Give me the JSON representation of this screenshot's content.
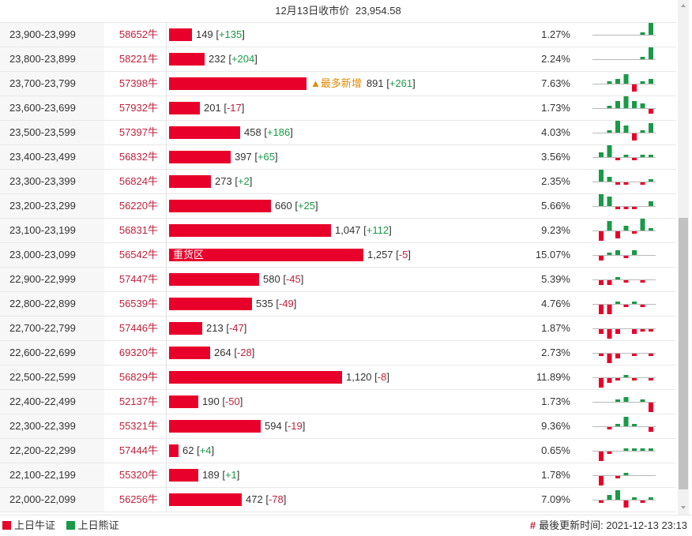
{
  "header": {
    "date_label": "12月13日收市价",
    "close_price": "23,954.58"
  },
  "colors": {
    "bull": "#e8002a",
    "bear": "#1a9a48",
    "bull_text": "#c0213a",
    "note": "#e08a00"
  },
  "max_value": 1257,
  "rows": [
    {
      "range": "23,900-23,999",
      "bull": "58652牛",
      "value": 149,
      "value_label": "149",
      "change": "+135",
      "note": "",
      "bar_text": "",
      "pct": "1.27%",
      "spark": [
        0,
        0,
        0,
        0,
        0,
        -1,
        -5
      ]
    },
    {
      "range": "23,800-23,899",
      "bull": "58221牛",
      "value": 232,
      "value_label": "232",
      "change": "+204",
      "note": "",
      "bar_text": "",
      "pct": "2.24%",
      "spark": [
        0,
        0,
        0,
        0,
        0,
        -1,
        -5
      ]
    },
    {
      "range": "23,700-23,799",
      "bull": "57398牛",
      "value": 891,
      "value_label": "891",
      "change": "+261",
      "note": "▲最多新增",
      "bar_text": "",
      "pct": "7.63%",
      "spark": [
        0,
        -1,
        -2,
        -4,
        3,
        -1,
        -2
      ]
    },
    {
      "range": "23,600-23,699",
      "bull": "57932牛",
      "value": 201,
      "value_label": "201",
      "change": "-17",
      "note": "",
      "bar_text": "",
      "pct": "1.73%",
      "spark": [
        0,
        -1,
        -3,
        -5,
        -3,
        -2,
        2
      ]
    },
    {
      "range": "23,500-23,599",
      "bull": "57397牛",
      "value": 458,
      "value_label": "458",
      "change": "+186",
      "note": "",
      "bar_text": "",
      "pct": "4.03%",
      "spark": [
        0,
        -1,
        -5,
        -3,
        3,
        -1,
        -4
      ]
    },
    {
      "range": "23,400-23,499",
      "bull": "56832牛",
      "value": 397,
      "value_label": "397",
      "change": "+65",
      "note": "",
      "bar_text": "",
      "pct": "3.56%",
      "spark": [
        -2,
        -5,
        1,
        -1,
        1,
        -1,
        -1
      ]
    },
    {
      "range": "23,300-23,399",
      "bull": "56824牛",
      "value": 273,
      "value_label": "273",
      "change": "+2",
      "note": "",
      "bar_text": "",
      "pct": "2.35%",
      "spark": [
        -5,
        -2,
        1,
        1,
        0,
        1,
        -1
      ]
    },
    {
      "range": "23,200-23,299",
      "bull": "56220牛",
      "value": 660,
      "value_label": "660",
      "change": "+25",
      "note": "",
      "bar_text": "",
      "pct": "5.66%",
      "spark": [
        -5,
        -4,
        1,
        1,
        1,
        0,
        -2
      ]
    },
    {
      "range": "23,100-23,199",
      "bull": "56831牛",
      "value": 1047,
      "value_label": "1,047",
      "change": "+112",
      "note": "",
      "bar_text": "",
      "pct": "9.23%",
      "spark": [
        4,
        -4,
        3,
        -2,
        1,
        -5,
        -1
      ]
    },
    {
      "range": "23,000-23,099",
      "bull": "56542牛",
      "value": 1257,
      "value_label": "1,257",
      "change": "-5",
      "note": "",
      "bar_text": "重货区",
      "pct": "15.07%",
      "spark": [
        2,
        -1,
        -2,
        1,
        -2,
        0,
        0
      ]
    },
    {
      "range": "22,900-22,999",
      "bull": "57447牛",
      "value": 580,
      "value_label": "580",
      "change": "-45",
      "note": "",
      "bar_text": "",
      "pct": "5.39%",
      "spark": [
        2,
        2,
        -1,
        1,
        0,
        1,
        0
      ]
    },
    {
      "range": "22,800-22,899",
      "bull": "56539牛",
      "value": 535,
      "value_label": "535",
      "change": "-49",
      "note": "",
      "bar_text": "",
      "pct": "4.76%",
      "spark": [
        4,
        4,
        -1,
        1,
        -1,
        1,
        0
      ]
    },
    {
      "range": "22,700-22,799",
      "bull": "57446牛",
      "value": 213,
      "value_label": "213",
      "change": "-47",
      "note": "",
      "bar_text": "",
      "pct": "1.87%",
      "spark": [
        2,
        4,
        2,
        0,
        2,
        1,
        1
      ]
    },
    {
      "range": "22,600-22,699",
      "bull": "69320牛",
      "value": 264,
      "value_label": "264",
      "change": "-28",
      "note": "",
      "bar_text": "",
      "pct": "2.73%",
      "spark": [
        1,
        4,
        2,
        0,
        1,
        0,
        1
      ]
    },
    {
      "range": "22,500-22,599",
      "bull": "56829牛",
      "value": 1120,
      "value_label": "1,120",
      "change": "-8",
      "note": "",
      "bar_text": "",
      "pct": "11.89%",
      "spark": [
        4,
        2,
        1,
        -1,
        1,
        0,
        1
      ]
    },
    {
      "range": "22,400-22,499",
      "bull": "52137牛",
      "value": 190,
      "value_label": "190",
      "change": "-50",
      "note": "",
      "bar_text": "",
      "pct": "1.73%",
      "spark": [
        0,
        0,
        -1,
        -2,
        0,
        -1,
        4
      ]
    },
    {
      "range": "22,300-22,399",
      "bull": "55321牛",
      "value": 594,
      "value_label": "594",
      "change": "-19",
      "note": "",
      "bar_text": "",
      "pct": "9.36%",
      "spark": [
        0,
        1,
        -1,
        -4,
        -1,
        0,
        2
      ]
    },
    {
      "range": "22,200-22,299",
      "bull": "57444牛",
      "value": 62,
      "value_label": "62",
      "change": "+4",
      "note": "",
      "bar_text": "",
      "pct": "0.65%",
      "spark": [
        4,
        1,
        0,
        -1,
        -1,
        -1,
        -1
      ]
    },
    {
      "range": "22,100-22,199",
      "bull": "55320牛",
      "value": 189,
      "value_label": "189",
      "change": "+1",
      "note": "",
      "bar_text": "",
      "pct": "1.78%",
      "spark": [
        4,
        0,
        1,
        -1,
        0,
        0,
        0
      ]
    },
    {
      "range": "22,000-22,099",
      "bull": "56256牛",
      "value": 472,
      "value_label": "472",
      "change": "-78",
      "note": "",
      "bar_text": "",
      "pct": "7.09%",
      "spark": [
        1,
        -2,
        -4,
        3,
        -1,
        1,
        -1
      ]
    }
  ],
  "footer": {
    "legend_bull": "上日牛证",
    "legend_bear": "上日熊证",
    "updated_label": "最後更新时间:",
    "updated_time": "2021-12-13 23:13"
  }
}
